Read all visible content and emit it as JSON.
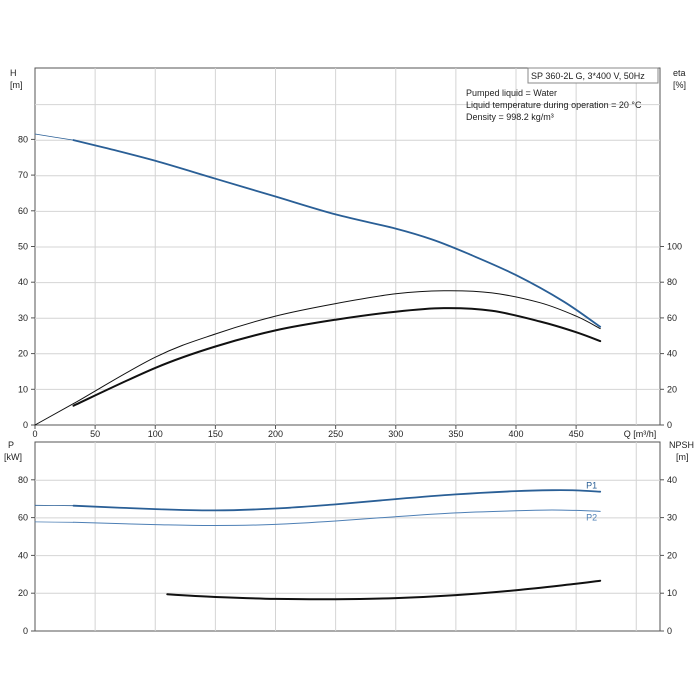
{
  "info": {
    "model": "SP 360-2L G, 3*400 V, 50Hz",
    "lines": [
      "Pumped liquid = Water",
      "Liquid temperature during operation = 20 °C",
      "Density = 998.2 kg/m³"
    ]
  },
  "colors": {
    "blue": "#2a5f96",
    "lightblue": "#4d7fb5",
    "black": "#111111"
  },
  "chart_data": [
    {
      "type": "line",
      "title": "",
      "xlabel": "Q [m³/h]",
      "x_ticks": [
        "0",
        "50",
        "100",
        "150",
        "200",
        "250",
        "300",
        "350",
        "400",
        "450"
      ],
      "xlim": [
        0,
        500
      ],
      "ylabel_left": [
        "H",
        "[m]"
      ],
      "ylim_left": [
        0,
        100
      ],
      "y_ticks_left": [
        "0",
        "10",
        "20",
        "30",
        "40",
        "50",
        "60",
        "70",
        "80"
      ],
      "ylabel_right": [
        "eta",
        "[%]"
      ],
      "ylim_right": [
        0,
        200
      ],
      "y_ticks_right": [
        "0",
        "20",
        "40",
        "60",
        "80",
        "100"
      ],
      "grid": true,
      "series": [
        {
          "name": "",
          "axis": "left",
          "color_key": "blue",
          "width": 1.8,
          "x": [
            32,
            60,
            100,
            150,
            200,
            250,
            300,
            330,
            360,
            400,
            440,
            470
          ],
          "y": [
            79.8,
            77.5,
            74,
            69,
            64,
            59,
            55,
            52,
            48,
            42,
            34.5,
            27.5
          ]
        },
        {
          "name": "",
          "axis": "left",
          "color_key": "blue",
          "width": 0.8,
          "x": [
            0,
            32
          ],
          "y": [
            81.5,
            79.8
          ]
        },
        {
          "name": "",
          "axis": "right",
          "color_key": "black",
          "width": 1,
          "x": [
            0,
            32,
            100,
            150,
            200,
            250,
            300,
            340,
            380,
            420,
            450,
            470
          ],
          "y": [
            0,
            12,
            38,
            51,
            61,
            68,
            73.5,
            75.2,
            74,
            68.5,
            61,
            54
          ]
        },
        {
          "name": "",
          "axis": "right",
          "color_key": "black",
          "width": 2,
          "x": [
            32,
            100,
            150,
            200,
            250,
            300,
            340,
            380,
            420,
            450,
            470
          ],
          "y": [
            10.8,
            32,
            44,
            53,
            59,
            63.5,
            65.5,
            64,
            58,
            52,
            47
          ]
        }
      ]
    },
    {
      "type": "line",
      "title": "",
      "xlabel": "",
      "xlim": [
        0,
        500
      ],
      "ylabel_left": [
        "P",
        "[kW]"
      ],
      "ylim_left": [
        0,
        100
      ],
      "y_ticks_left": [
        "0",
        "20",
        "40",
        "60",
        "80"
      ],
      "ylabel_right": [
        "NPSH",
        "[m]"
      ],
      "ylim_right": [
        0,
        50
      ],
      "y_ticks_right": [
        "0",
        "10",
        "20",
        "30",
        "40"
      ],
      "grid": true,
      "series": [
        {
          "name": "P1",
          "axis": "left",
          "color_key": "blue",
          "width": 1.8,
          "x": [
            32,
            100,
            150,
            200,
            250,
            300,
            350,
            400,
            430,
            450,
            470
          ],
          "y": [
            66.3,
            64.5,
            63.8,
            64.8,
            67,
            69.8,
            72.3,
            74,
            74.5,
            74.4,
            73.7
          ]
        },
        {
          "name": "",
          "axis": "left",
          "color_key": "blue",
          "width": 0.8,
          "x": [
            0,
            32
          ],
          "y": [
            66.5,
            66.3
          ]
        },
        {
          "name": "P2",
          "axis": "left",
          "color_key": "lightblue",
          "width": 1,
          "x": [
            32,
            100,
            150,
            200,
            250,
            300,
            350,
            400,
            430,
            450,
            470
          ],
          "y": [
            57.5,
            56.3,
            55.8,
            56.4,
            58.2,
            60.5,
            62.5,
            63.6,
            64,
            63.8,
            63.3
          ]
        },
        {
          "name": "",
          "axis": "left",
          "color_key": "lightblue",
          "width": 0.8,
          "x": [
            0,
            32
          ],
          "y": [
            57.7,
            57.5
          ]
        },
        {
          "name": "",
          "axis": "right",
          "color_key": "black",
          "width": 2,
          "x": [
            110,
            150,
            200,
            250,
            300,
            350,
            400,
            450,
            470
          ],
          "y": [
            9.7,
            9,
            8.5,
            8.4,
            8.7,
            9.5,
            10.8,
            12.5,
            13.3
          ]
        }
      ]
    }
  ]
}
